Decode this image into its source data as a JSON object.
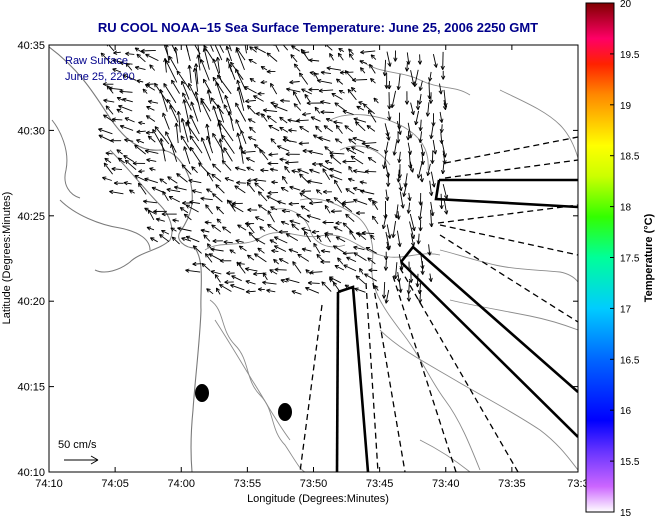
{
  "figure": {
    "title": "RU COOL   NOAA–15  Sea Surface Temperature:  June 25, 2006 2250 GMT",
    "inset_text_line1": "Raw Surface",
    "inset_text_line2": "June 25, 2200",
    "scale_label": "50 cm/s",
    "xlabel": "Longitude (Degrees:Minutes)",
    "ylabel": "Latitude (Degrees:Minutes)",
    "colorbar_label": "Temperature (°C)",
    "x_ticks": [
      "74:10",
      "74:05",
      "74:00",
      "73:55",
      "73:50",
      "73:45",
      "73:40",
      "73:35",
      "73:3"
    ],
    "y_ticks": [
      "40:35",
      "40:30",
      "40:25",
      "40:20",
      "40:15",
      "40:10"
    ],
    "colorbar_ticks": [
      "20",
      "19.5",
      "19",
      "18.5",
      "18",
      "17.5",
      "17",
      "16.5",
      "16",
      "15.5",
      "15"
    ],
    "colors": {
      "title": "#00008b",
      "arrows": "#000000",
      "contours": "#8c8c8c",
      "coast": "#7a7a7a"
    }
  },
  "chart_data": {
    "type": "map",
    "xlim": [
      "74:10",
      "73:30"
    ],
    "ylim": [
      "40:10",
      "40:35"
    ],
    "colorbar_range": [
      15,
      20
    ],
    "features": [
      "surface current vectors",
      "bathymetry contours",
      "coastline",
      "antenna beam patterns"
    ]
  }
}
